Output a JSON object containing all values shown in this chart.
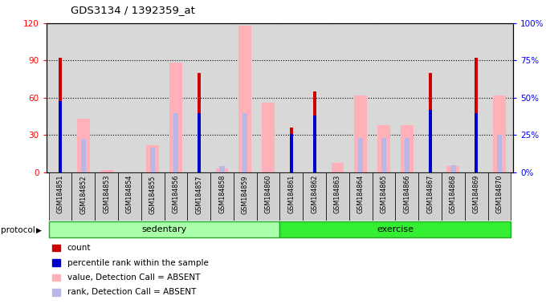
{
  "title": "GDS3134 / 1392359_at",
  "samples": [
    "GSM184851",
    "GSM184852",
    "GSM184853",
    "GSM184854",
    "GSM184855",
    "GSM184856",
    "GSM184857",
    "GSM184858",
    "GSM184859",
    "GSM184860",
    "GSM184861",
    "GSM184862",
    "GSM184863",
    "GSM184864",
    "GSM184865",
    "GSM184866",
    "GSM184867",
    "GSM184868",
    "GSM184869",
    "GSM184870"
  ],
  "count": [
    92,
    0,
    0,
    0,
    0,
    0,
    80,
    0,
    0,
    0,
    36,
    65,
    0,
    0,
    0,
    0,
    80,
    0,
    92,
    0
  ],
  "percentile_rank": [
    48,
    0,
    0,
    0,
    0,
    0,
    40,
    0,
    0,
    0,
    26,
    38,
    0,
    0,
    0,
    0,
    42,
    0,
    40,
    0
  ],
  "value_absent": [
    0,
    43,
    2,
    0,
    22,
    88,
    0,
    3,
    118,
    56,
    0,
    0,
    8,
    62,
    38,
    38,
    0,
    5,
    0,
    62
  ],
  "rank_absent": [
    0,
    27,
    0,
    0,
    20,
    48,
    0,
    5,
    48,
    0,
    0,
    0,
    0,
    28,
    28,
    28,
    0,
    6,
    0,
    30
  ],
  "sedentary_count": 10,
  "exercise_count": 10,
  "ylim_left": [
    0,
    120
  ],
  "ylim_right": [
    0,
    100
  ],
  "yticks_left": [
    0,
    30,
    60,
    90,
    120
  ],
  "yticks_right": [
    0,
    25,
    50,
    75,
    100
  ],
  "ytick_labels_right": [
    "0%",
    "25%",
    "50%",
    "75%",
    "100%"
  ],
  "color_count": "#cc0000",
  "color_percentile": "#0000cc",
  "color_value_absent": "#ffb0b8",
  "color_rank_absent": "#b8b8e8",
  "background_color": "#d8d8d8",
  "protocol_label": "protocol",
  "sedentary_label": "sedentary",
  "exercise_label": "exercise",
  "sedentary_color": "#aaffaa",
  "exercise_color": "#33ee33",
  "legend_items": [
    "count",
    "percentile rank within the sample",
    "value, Detection Call = ABSENT",
    "rank, Detection Call = ABSENT"
  ],
  "legend_colors": [
    "#cc0000",
    "#0000cc",
    "#ffb0b8",
    "#b8b8e8"
  ]
}
